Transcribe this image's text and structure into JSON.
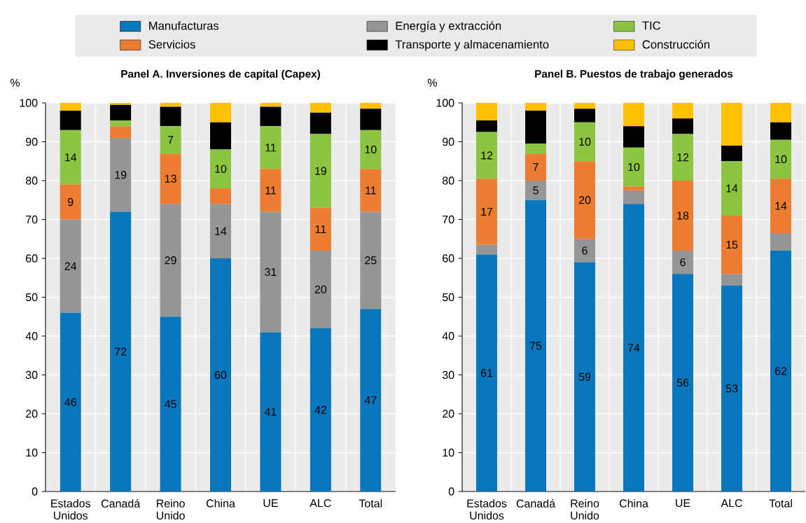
{
  "chart_data": [
    {
      "type": "bar",
      "stacked": true,
      "title": "Panel A. Inversiones de capital (Capex)",
      "ylabel": "%",
      "categories": [
        "Estados Unidos",
        "Canadá",
        "Reino Unido",
        "China",
        "UE",
        "ALC",
        "Total"
      ],
      "series": [
        {
          "name": "Manufacturas",
          "color": "#0a77bd",
          "values": [
            46,
            72,
            45,
            60,
            41,
            42,
            47
          ],
          "value_labels": [
            "46",
            "72",
            "45",
            "60",
            "41",
            "42",
            "47"
          ]
        },
        {
          "name": "Energía y extracción",
          "color": "#969696",
          "values": [
            24,
            19,
            29,
            14,
            31,
            20,
            25
          ],
          "value_labels": [
            "24",
            "19",
            "29",
            "14",
            "31",
            "20",
            "25"
          ]
        },
        {
          "name": "Servicios",
          "color": "#ed7d31",
          "values": [
            9,
            3,
            13,
            4,
            11,
            11,
            11
          ],
          "value_labels": [
            "9",
            null,
            "13",
            null,
            "11",
            "11",
            "11"
          ]
        },
        {
          "name": "TIC",
          "color": "#8cc641",
          "values": [
            14,
            1.5,
            7,
            10,
            11,
            19,
            10
          ],
          "value_labels": [
            "14",
            null,
            "7",
            "10",
            "11",
            "19",
            "10"
          ]
        },
        {
          "name": "Transporte y almacenamiento",
          "color": "#000000",
          "values": [
            5,
            4,
            5,
            7,
            5,
            5.5,
            5.5
          ]
        },
        {
          "name": "Construcción",
          "color": "#ffc000",
          "values": [
            2,
            0.5,
            1,
            5,
            1,
            2.5,
            1.5
          ]
        }
      ],
      "ylim": [
        0,
        100
      ],
      "yticks": [
        0,
        10,
        20,
        30,
        40,
        50,
        60,
        70,
        80,
        90,
        100
      ],
      "grid": true,
      "legend": "top"
    },
    {
      "type": "bar",
      "stacked": true,
      "title": "Panel B. Puestos de trabajo generados",
      "ylabel": "%",
      "categories": [
        "Estados Unidos",
        "Canadá",
        "Reino Unido",
        "China",
        "UE",
        "ALC",
        "Total"
      ],
      "series": [
        {
          "color": "#0a77bd",
          "values": [
            61,
            75,
            59,
            74,
            56,
            53,
            62
          ],
          "value_labels": [
            "61",
            "75",
            "59",
            "74",
            "56",
            "53",
            "62"
          ]
        },
        {
          "color": "#969696",
          "values": [
            2.5,
            5,
            6,
            3.5,
            6,
            3,
            4.5
          ],
          "value_labels": [
            null,
            "5",
            "6",
            null,
            "6",
            null,
            null
          ]
        },
        {
          "color": "#ed7d31",
          "values": [
            17,
            7,
            20,
            1,
            18,
            15,
            14
          ],
          "value_labels": [
            "17",
            "7",
            "20",
            null,
            "18",
            "15",
            "14"
          ]
        },
        {
          "color": "#8cc641",
          "values": [
            12,
            2.5,
            10,
            10,
            12,
            14,
            10
          ],
          "value_labels": [
            "12",
            null,
            "10",
            "10",
            "12",
            "14",
            "10"
          ]
        },
        {
          "color": "#000000",
          "values": [
            3,
            8.5,
            3.5,
            5.5,
            4,
            4,
            4.5
          ]
        },
        {
          "color": "#ffc000",
          "values": [
            4.5,
            2,
            1.5,
            6,
            4,
            11,
            5
          ]
        }
      ],
      "ylim": [
        0,
        100
      ],
      "yticks": [
        0,
        10,
        20,
        30,
        40,
        50,
        60,
        70,
        80,
        90,
        100
      ],
      "grid": true
    }
  ]
}
